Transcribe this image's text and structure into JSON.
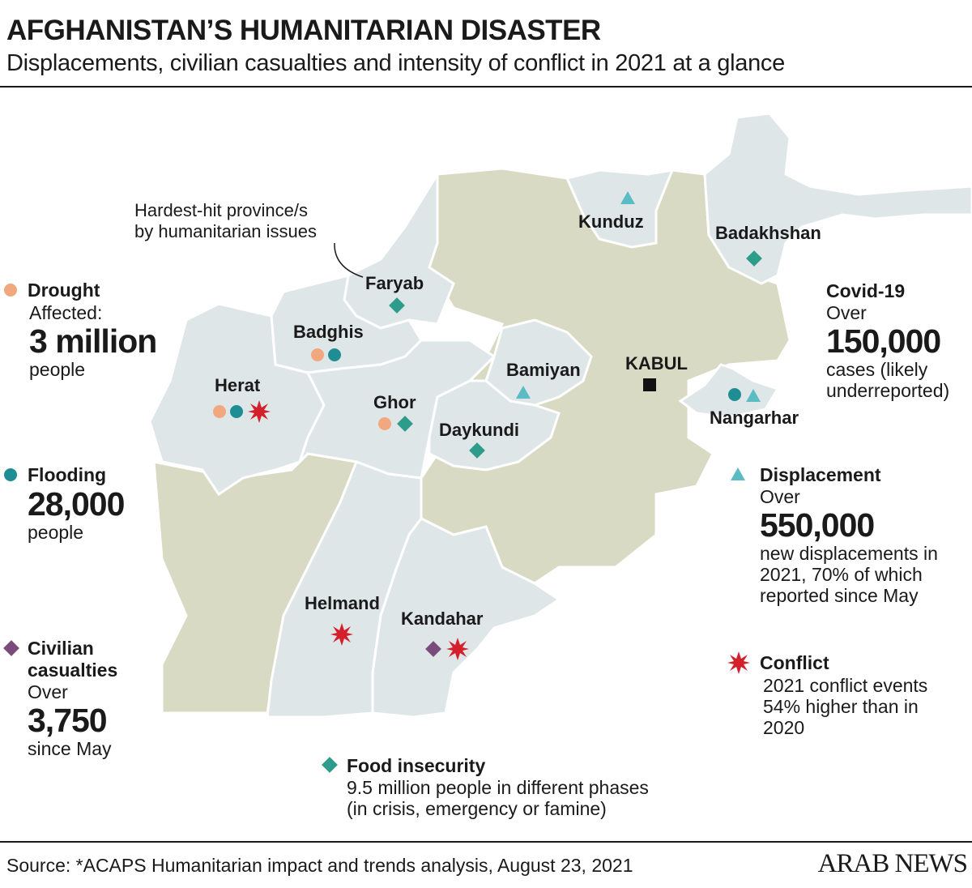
{
  "title": "AFGHANISTAN’S HUMANITARIAN DISASTER",
  "subtitle": "Displacements, civilian casualties and intensity of conflict in 2021 at a glance",
  "colors": {
    "highlight_province": "#dfe6e8",
    "other_province": "#d8dac3",
    "border": "#ffffff",
    "drought": "#f2a87f",
    "flooding": "#1f8e94",
    "civilian_casualties": "#7b4b7c",
    "food_insecurity": "#2e9c8a",
    "displacement": "#5cbcc4",
    "conflict": "#d4202a",
    "capital": "#111111"
  },
  "callout": {
    "line1": "Hardest-hit province/s",
    "line2": "by humanitarian issues"
  },
  "capital": {
    "label": "KABUL",
    "icon": "square-icon"
  },
  "provinces": [
    {
      "name": "Kunduz",
      "markers": [
        "displacement"
      ]
    },
    {
      "name": "Badakhshan",
      "markers": [
        "food_insecurity"
      ]
    },
    {
      "name": "Faryab",
      "markers": [
        "food_insecurity"
      ]
    },
    {
      "name": "Badghis",
      "markers": [
        "drought",
        "flooding"
      ]
    },
    {
      "name": "Herat",
      "markers": [
        "drought",
        "flooding",
        "conflict"
      ]
    },
    {
      "name": "Ghor",
      "markers": [
        "drought",
        "food_insecurity"
      ]
    },
    {
      "name": "Bamiyan",
      "markers": [
        "displacement"
      ]
    },
    {
      "name": "Daykundi",
      "markers": [
        "food_insecurity"
      ]
    },
    {
      "name": "Nangarhar",
      "markers": [
        "flooding",
        "displacement"
      ]
    },
    {
      "name": "Helmand",
      "markers": [
        "conflict"
      ]
    },
    {
      "name": "Kandahar",
      "markers": [
        "civilian_casualties",
        "conflict"
      ]
    }
  ],
  "legend": {
    "drought": {
      "heading": "Drought",
      "line1": "Affected:",
      "figure": "3 million",
      "line2": "people",
      "icon": "circle-icon"
    },
    "flooding": {
      "heading": "Flooding",
      "figure": "28,000",
      "line2": "people",
      "icon": "circle-icon"
    },
    "civilian_casualties": {
      "heading1": "Civilian",
      "heading2": "casualties",
      "line1": "Over",
      "figure": "3,750",
      "line2": "since May",
      "icon": "diamond-icon"
    },
    "covid": {
      "heading": "Covid-19",
      "line1": "Over",
      "figure": "150,000",
      "line2": "cases (likely",
      "line3": "underreported)"
    },
    "displacement": {
      "heading": "Displacement",
      "line1": "Over",
      "figure": "550,000",
      "line2": "new displacements in",
      "line3": "2021, 70% of which",
      "line4": "reported since May",
      "icon": "triangle-icon"
    },
    "conflict": {
      "heading": "Conflict",
      "line1": "2021 conflict events",
      "line2": "54% higher than in",
      "line3": "2020",
      "icon": "starburst-icon"
    },
    "food_insecurity": {
      "heading": "Food insecurity",
      "line1": "9.5 million people in different phases",
      "line2": "(in crisis, emergency or famine)",
      "icon": "diamond-icon"
    }
  },
  "source": "Source: *ACAPS Humanitarian impact and trends analysis, August 23, 2021",
  "brand": "ARAB NEWS"
}
